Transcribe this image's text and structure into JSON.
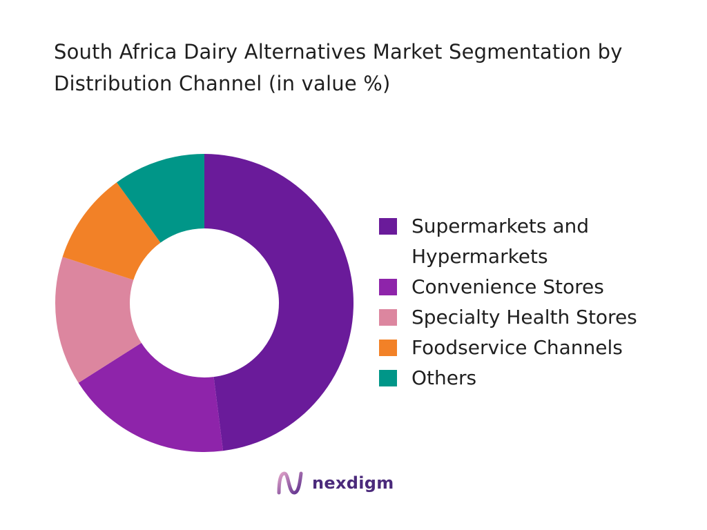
{
  "title": "South Africa Dairy Alternatives Market Segmentation by  Distribution Channel (in value %)",
  "chart_data": {
    "type": "pie",
    "donut": true,
    "title": "South Africa Dairy Alternatives Market Segmentation by  Distribution Channel (in value %)",
    "legend_position": "right",
    "slices": [
      {
        "label": "Supermarkets and Hypermarkets",
        "value": 48,
        "color": "#6a1b9a"
      },
      {
        "label": "Convenience Stores",
        "value": 18,
        "color": "#8e24aa"
      },
      {
        "label": "Specialty Health Stores",
        "value": 14,
        "color": "#dc869f"
      },
      {
        "label": "Foodservice Channels",
        "value": 10,
        "color": "#f28127"
      },
      {
        "label": "Others",
        "value": 10,
        "color": "#009688"
      }
    ]
  },
  "legend": {
    "items": [
      {
        "label": "Supermarkets and Hypermarkets",
        "color": "#6a1b9a"
      },
      {
        "label": "Convenience Stores",
        "color": "#8e24aa"
      },
      {
        "label": "Specialty Health Stores",
        "color": "#dc869f"
      },
      {
        "label": "Foodservice Channels",
        "color": "#f28127"
      },
      {
        "label": "Others",
        "color": "#009688"
      }
    ]
  },
  "brand": {
    "name": "nexdigm",
    "logo_icon": "nexdigm-logo-icon",
    "color": "#4b2a7b"
  }
}
